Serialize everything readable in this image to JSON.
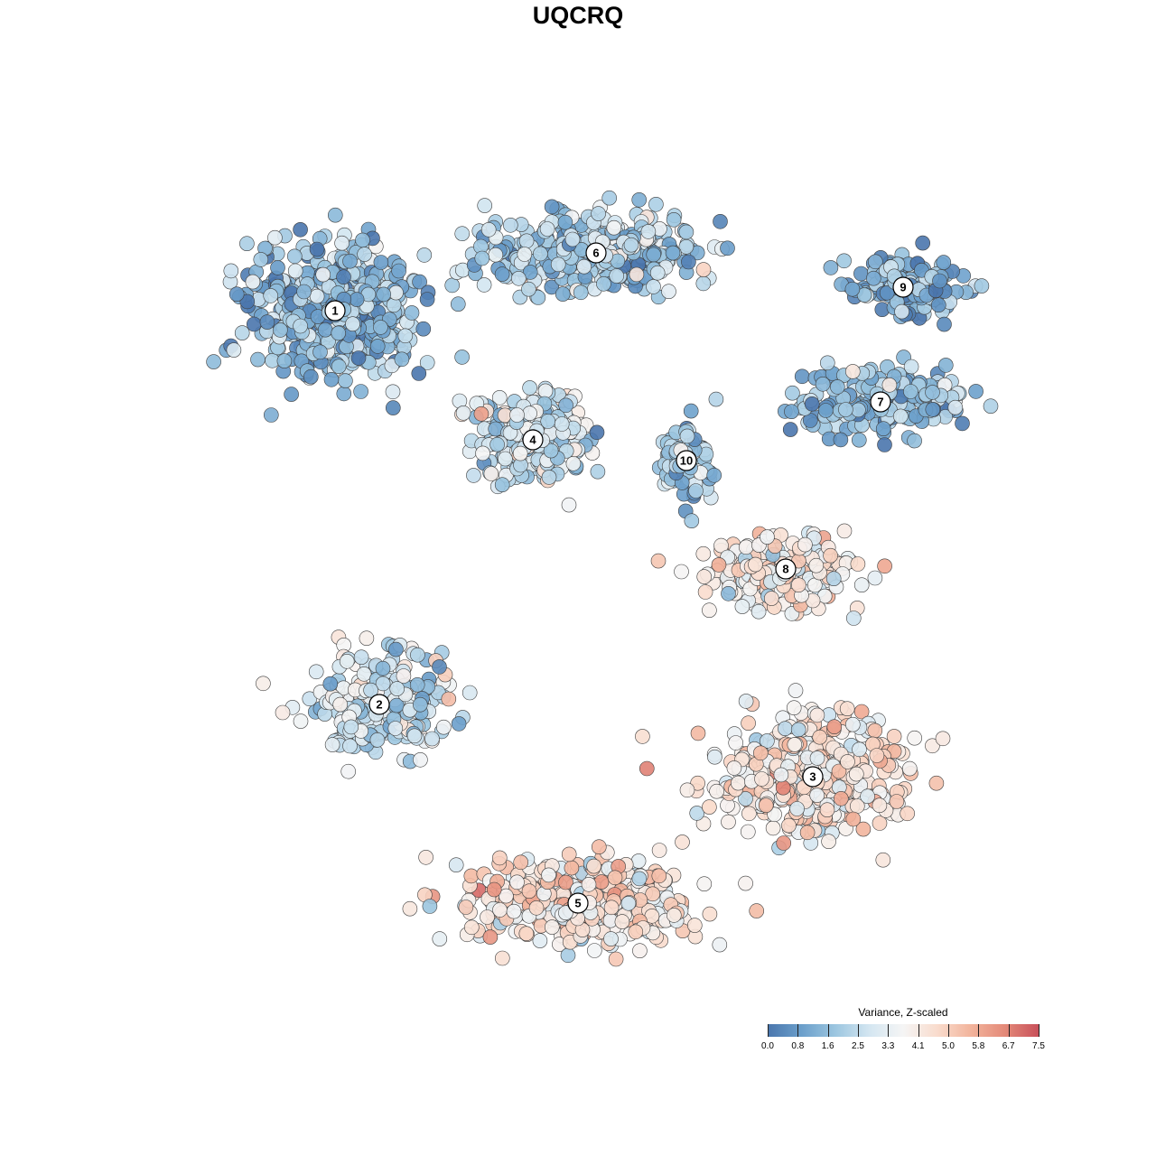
{
  "title": "UQCRQ",
  "legend": {
    "title": "Variance, Z-scaled",
    "ticks": [
      "0.0",
      "0.8",
      "1.6",
      "2.5",
      "3.3",
      "4.1",
      "5.0",
      "5.8",
      "6.7",
      "7.5"
    ],
    "min": 0.0,
    "max": 7.5
  },
  "colors": {
    "scale": [
      "#4a76ad",
      "#6b9fcb",
      "#9cc6e0",
      "#d4e6f1",
      "#f5f5f5",
      "#f9dccd",
      "#f2b49c",
      "#e48a79",
      "#c8505a"
    ]
  },
  "chart_data": {
    "type": "scatter",
    "title": "UQCRQ",
    "xlabel": "",
    "ylabel": "",
    "grid": false,
    "legend_placement": "bottom-right",
    "color_variable": "Variance, Z-scaled",
    "color_range": [
      0.0,
      7.5
    ],
    "clusters": [
      {
        "label": "1",
        "x": 371,
        "y": -344,
        "value": 1.4,
        "spread_x": 85,
        "spread_y": 70,
        "n": 520
      },
      {
        "label": "6",
        "x": 660,
        "y": -280,
        "value": 2.0,
        "spread_x": 110,
        "spread_y": 40,
        "n": 420
      },
      {
        "label": "9",
        "x": 1000,
        "y": -318,
        "value": 1.2,
        "spread_x": 55,
        "spread_y": 30,
        "n": 150
      },
      {
        "label": "7",
        "x": 975,
        "y": -445,
        "value": 1.4,
        "spread_x": 90,
        "spread_y": 30,
        "n": 200
      },
      {
        "label": "4",
        "x": 590,
        "y": -487,
        "value": 2.5,
        "spread_x": 55,
        "spread_y": 45,
        "n": 320
      },
      {
        "label": "10",
        "x": 760,
        "y": -510,
        "value": 1.8,
        "spread_x": 25,
        "spread_y": 40,
        "n": 90
      },
      {
        "label": "8",
        "x": 870,
        "y": -630,
        "value": 3.8,
        "spread_x": 75,
        "spread_y": 35,
        "n": 240
      },
      {
        "label": "2",
        "x": 420,
        "y": -780,
        "value": 2.6,
        "spread_x": 70,
        "spread_y": 45,
        "n": 260
      },
      {
        "label": "3",
        "x": 900,
        "y": -860,
        "value": 4.0,
        "spread_x": 95,
        "spread_y": 55,
        "n": 430
      },
      {
        "label": "5",
        "x": 640,
        "y": -1000,
        "value": 4.3,
        "spread_x": 110,
        "spread_y": 45,
        "n": 430
      }
    ]
  }
}
